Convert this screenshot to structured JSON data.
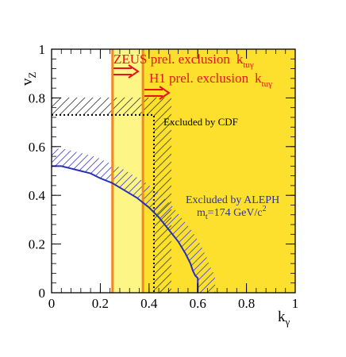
{
  "chart_data": {
    "type": "line",
    "xlabel": "k",
    "xlabel_sub": "γ",
    "ylabel": "v",
    "ylabel_sub": "Z",
    "xlim": [
      0,
      1
    ],
    "ylim": [
      0,
      1
    ],
    "xticks": [
      0,
      0.2,
      0.4,
      0.6,
      0.8,
      1
    ],
    "xtick_labels": [
      "0",
      "0.2",
      "0.4",
      "0.6",
      "0.8",
      "1"
    ],
    "yticks": [
      0,
      0.2,
      0.4,
      0.6,
      0.8,
      1
    ],
    "ytick_labels": [
      "0",
      "0.2",
      "0.4",
      "0.6",
      "0.8",
      "1"
    ],
    "colors": {
      "excluded_fill": "#fde02e",
      "light_band": "#fdf585",
      "exclusion_line": "#f0891e",
      "red_text": "#e4141b",
      "aleph": "#2a2fb8",
      "cdf": "#000000",
      "hatch_black": "#444444"
    },
    "regions": {
      "excluded_from_k": 0.25,
      "light_band_from_k": 0.25,
      "light_band_to_k": 0.375
    },
    "vertical_lines": [
      {
        "k": 0.25,
        "color": "#f0891e"
      },
      {
        "k": 0.375,
        "color": "#f0891e"
      }
    ],
    "series": [
      {
        "name": "ALEPH",
        "color": "#2a2fb8",
        "x": [
          0,
          0.04,
          0.08,
          0.12,
          0.16,
          0.2,
          0.25,
          0.3,
          0.35,
          0.375,
          0.4,
          0.44,
          0.48,
          0.52,
          0.55,
          0.57,
          0.58,
          0.59,
          0.6,
          0.6
        ],
        "y": [
          0.52,
          0.52,
          0.51,
          0.5,
          0.49,
          0.47,
          0.45,
          0.42,
          0.39,
          0.37,
          0.35,
          0.31,
          0.26,
          0.21,
          0.16,
          0.12,
          0.09,
          0.07,
          0.06,
          0
        ]
      },
      {
        "name": "CDF",
        "color": "#000000",
        "style": "dotted",
        "x": [
          0,
          0.42,
          0.42
        ],
        "y": [
          0.73,
          0.73,
          0
        ]
      }
    ],
    "annotations": {
      "zeus": {
        "text": "ZEUS prel. exclusion",
        "k": "k",
        "sub": "tuγ"
      },
      "h1": {
        "text": "H1 prel. exclusion",
        "k": "k",
        "sub": "tuγ"
      },
      "cdf": "Excluded by CDF",
      "aleph": "Excluded by ALEPH",
      "mt_main": "m",
      "mt_sub": "t",
      "mt_value": "=174 GeV/c",
      "mt_sup": "2"
    }
  }
}
